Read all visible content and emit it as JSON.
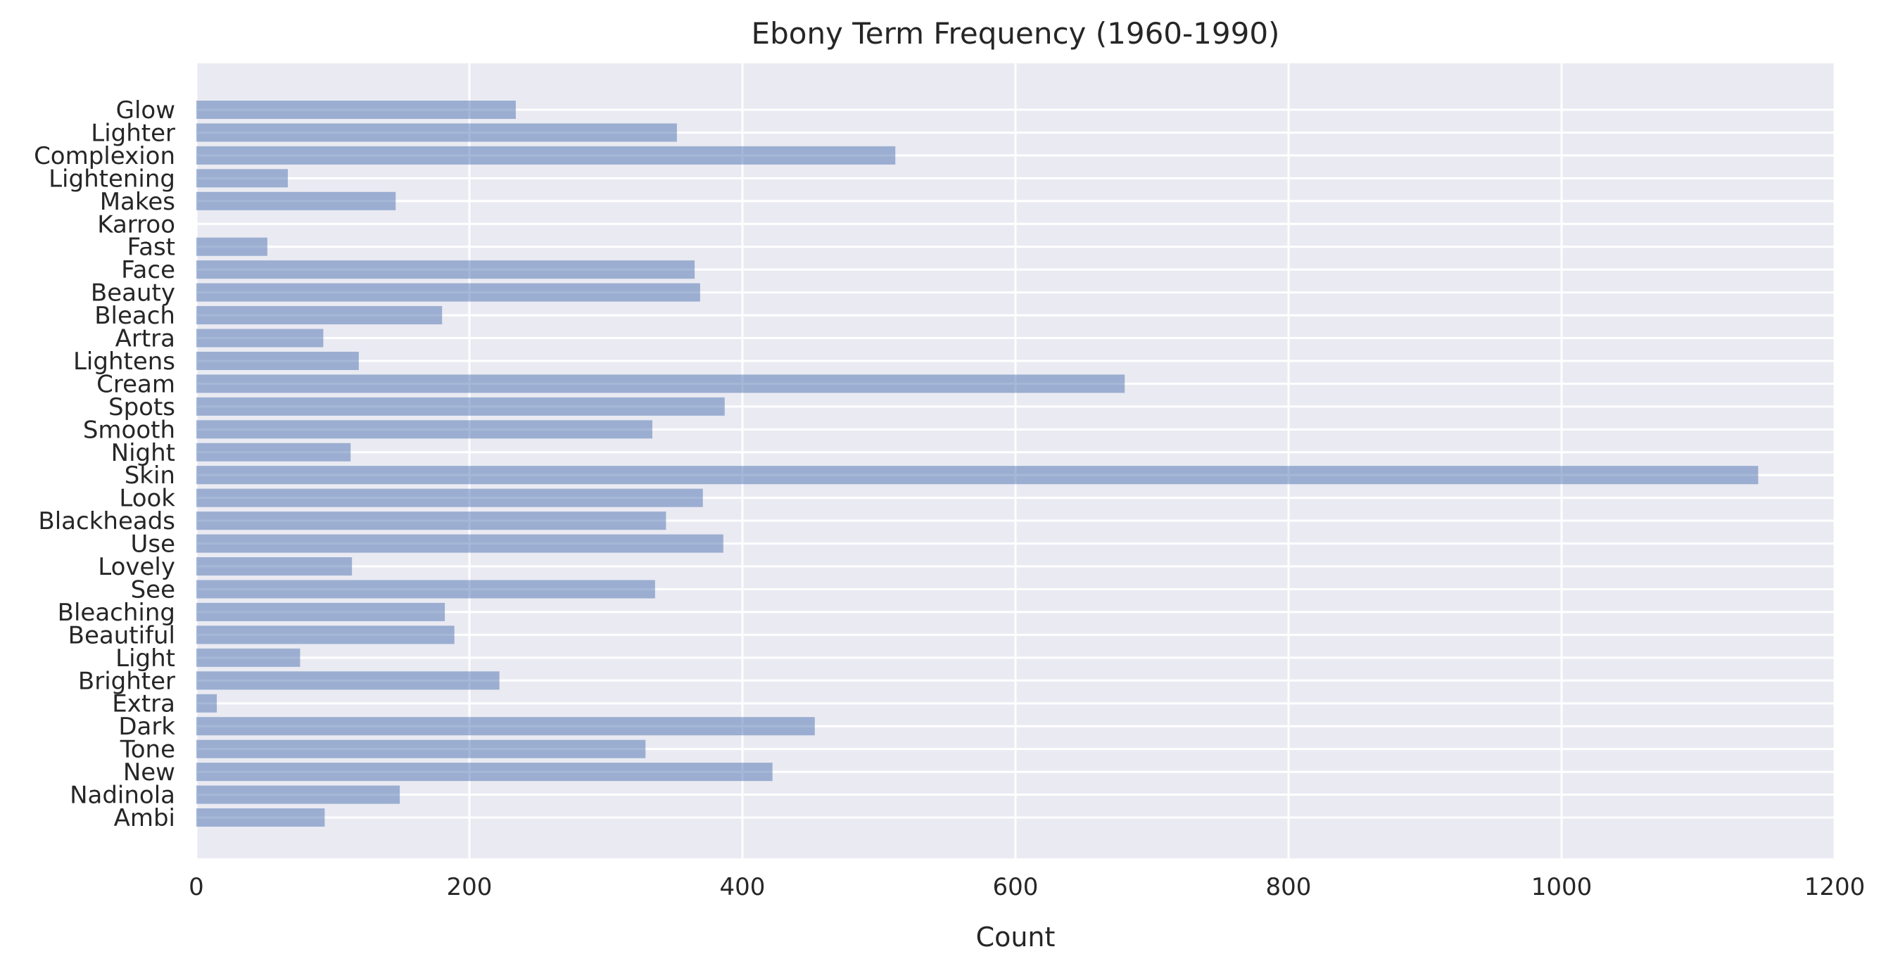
{
  "chart_data": {
    "type": "bar",
    "orientation": "horizontal",
    "title": "Ebony Term Frequency (1960-1990)",
    "xlabel": "Count",
    "ylabel": "",
    "xlim": [
      0,
      1200
    ],
    "xticks": [
      0,
      200,
      400,
      600,
      800,
      1000,
      1200
    ],
    "grid": true,
    "legend": "none",
    "categories": [
      "Glow",
      "Lighter",
      "Complexion",
      "Lightening",
      "Makes",
      "Karroo",
      "Fast",
      "Face",
      "Beauty",
      "Bleach",
      "Artra",
      "Lightens",
      "Cream",
      "Spots",
      "Smooth",
      "Night",
      "Skin",
      "Look",
      "Blackheads",
      "Use",
      "Lovely",
      "See",
      "Bleaching",
      "Beautiful",
      "Light",
      "Brighter",
      "Extra",
      "Dark",
      "Tone",
      "New",
      "Nadinola",
      "Ambi"
    ],
    "values": [
      234,
      352,
      512,
      67,
      146,
      0,
      52,
      365,
      369,
      180,
      93,
      119,
      680,
      387,
      334,
      113,
      1144,
      371,
      344,
      386,
      114,
      336,
      182,
      189,
      76,
      222,
      15,
      453,
      329,
      422,
      149,
      94
    ],
    "colors": {
      "background": "#eaeaf2",
      "grid": "#ffffff",
      "bar": "#4c72b0",
      "bar_opacity": 0.5,
      "text": "#262626"
    }
  }
}
